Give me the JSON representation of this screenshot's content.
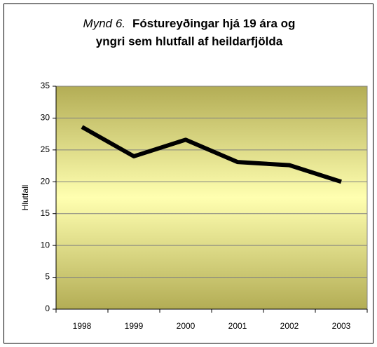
{
  "chart_data": {
    "type": "line",
    "title_label": "Mynd 6.",
    "title": [
      "Fóstureyðingar hjá 19 ára og",
      "yngri sem hlutfall af heildarfjölda"
    ],
    "y_label": "Hlutfall",
    "categories": [
      "1998",
      "1999",
      "2000",
      "2001",
      "2002",
      "2003"
    ],
    "series": [
      {
        "color": "#000000",
        "values": [
          28.6,
          24.0,
          26.6,
          23.1,
          22.6,
          20.0
        ]
      }
    ],
    "ylim": [
      0,
      35
    ],
    "yticks": [
      0,
      5,
      10,
      15,
      20,
      25,
      30,
      35
    ],
    "grid": true
  }
}
